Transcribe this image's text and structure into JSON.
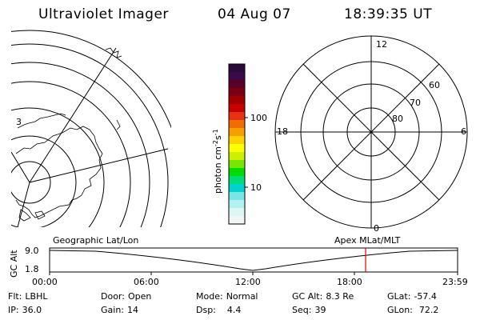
{
  "header": {
    "instrument": "Ultraviolet Imager",
    "date": "04 Aug 07",
    "time": "18:39:35 UT"
  },
  "geo_panel": {
    "coast_labels": [
      "3"
    ]
  },
  "colorbar": {
    "unit_label": "photon cm-2s-1",
    "unit_base": "photon cm",
    "unit_exp1": "-2",
    "unit_mid": "s",
    "unit_exp2": "-1",
    "tick_100": "100",
    "tick_10": "10",
    "colors": [
      "#2a0a3c",
      "#3c0a46",
      "#5a0028",
      "#7a0010",
      "#a00000",
      "#c80000",
      "#e63214",
      "#f06e00",
      "#f5a000",
      "#ffd200",
      "#ffff00",
      "#ccf000",
      "#78e600",
      "#00dc00",
      "#00dc78",
      "#00d2d2",
      "#78e6e6",
      "#b4f0f0",
      "#dcf5f5",
      "#f0f5f5"
    ]
  },
  "polar_panel": {
    "mlt_top": "12",
    "mlt_left": "18",
    "mlt_right": "6",
    "mlt_bottom": "0",
    "lat_60": "60",
    "lat_70": "70",
    "lat_80": "80"
  },
  "timeline": {
    "y_axis_label": "GC Alt",
    "y_max": "9.0",
    "y_min": "1.8",
    "left_title": "Geographic Lat/Lon",
    "right_title": "Apex MLat/MLT",
    "x_ticks": [
      "00:00",
      "06:00",
      "12:00",
      "18:00",
      "23:59"
    ],
    "marker_color": "#e60000"
  },
  "info": {
    "flt_label": "Flt:",
    "flt_value": "LBHL",
    "ip_label": "IP:",
    "ip_value": "36.0",
    "door_label": "Door:",
    "door_value": "Open",
    "gain_label": "Gain:",
    "gain_value": "14",
    "mode_label": "Mode:",
    "mode_value": "Normal",
    "dsp_label": "Dsp:",
    "dsp_value": "4.4",
    "gcalt_label": "GC Alt:",
    "gcalt_value": "8.3 Re",
    "seq_label": "Seq:",
    "seq_value": "39",
    "glat_label": "GLat:",
    "glat_value": "-57.4",
    "glon_label": "GLon:",
    "glon_value": "72.2"
  }
}
